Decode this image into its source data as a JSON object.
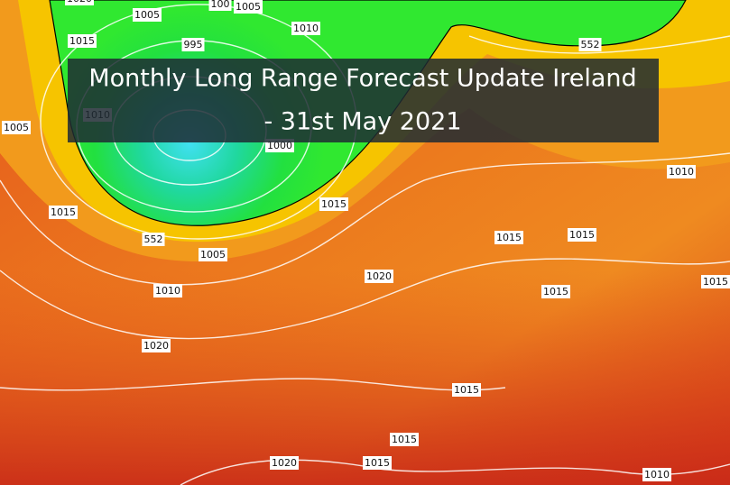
{
  "title_lines": [
    "Monthly Long Range Forecast Update Ireland",
    "- 31st May 2021"
  ],
  "isobar_labels": [
    "1020",
    "1005",
    "100",
    "1005",
    "1010",
    "1015",
    "995",
    "552",
    "1010",
    "1005",
    "1000",
    "1010",
    "1015",
    "1015",
    "552",
    "1015",
    "1015",
    "1005",
    "1020",
    "1010",
    "1015",
    "1015",
    "1020",
    "1015",
    "1015",
    "1020",
    "1015",
    "1010"
  ]
}
